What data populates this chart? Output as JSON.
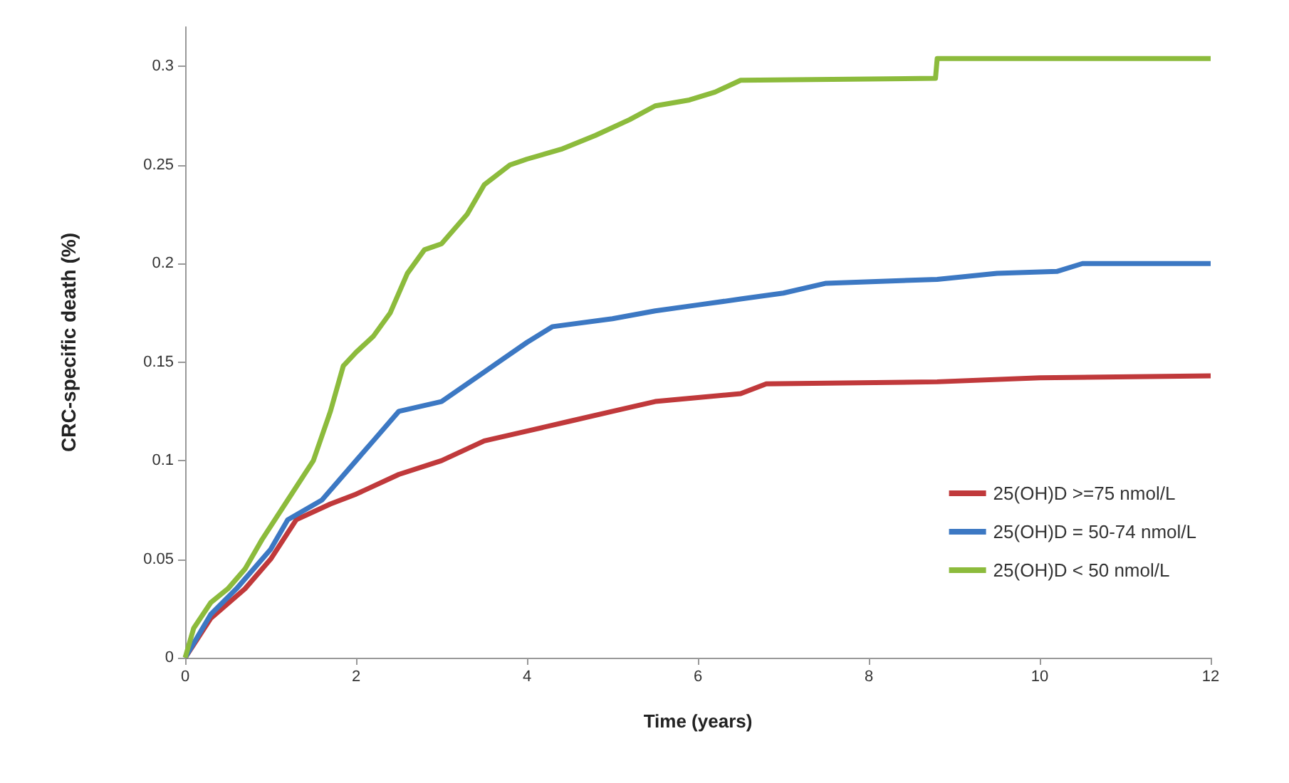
{
  "chart_data": {
    "type": "line",
    "xlabel": "Time (years)",
    "ylabel": "CRC-specific death (%)",
    "xlim": [
      0,
      12
    ],
    "xticks": [
      0,
      2,
      4,
      6,
      8,
      10,
      12
    ],
    "ylim": [
      0,
      0.32
    ],
    "yticks": [
      0,
      0.05,
      0.1,
      0.15,
      0.2,
      0.25,
      0.3
    ],
    "grid": false,
    "legend": "right",
    "marker": "none",
    "line_style": "solid",
    "series": [
      {
        "name": "25(OH)D >=75 nmol/L",
        "color": "#c0393b",
        "x": [
          0,
          0.3,
          0.7,
          1,
          1.3,
          1.7,
          2,
          2.5,
          3,
          3.5,
          4,
          4.5,
          5,
          5.5,
          6,
          6.5,
          6.8,
          8.8,
          10,
          12
        ],
        "values": [
          0,
          0.02,
          0.035,
          0.05,
          0.07,
          0.078,
          0.083,
          0.093,
          0.1,
          0.11,
          0.115,
          0.12,
          0.125,
          0.13,
          0.132,
          0.134,
          0.139,
          0.14,
          0.142,
          0.143
        ]
      },
      {
        "name": "25(OH)D = 50-74 nmol/L",
        "color": "#3c78c3",
        "x": [
          0,
          0.3,
          0.6,
          1,
          1.2,
          1.6,
          2,
          2.2,
          2.5,
          3,
          3.5,
          4,
          4.3,
          5,
          5.5,
          6,
          6.5,
          7,
          7.5,
          8.8,
          9.5,
          10.2,
          10.5,
          12
        ],
        "values": [
          0,
          0.022,
          0.035,
          0.055,
          0.07,
          0.08,
          0.1,
          0.11,
          0.125,
          0.13,
          0.145,
          0.16,
          0.168,
          0.172,
          0.176,
          0.179,
          0.182,
          0.185,
          0.19,
          0.192,
          0.195,
          0.196,
          0.2,
          0.2
        ]
      },
      {
        "name": "25(OH)D < 50 nmol/L",
        "color": "#8cbb3c",
        "x": [
          0,
          0.1,
          0.3,
          0.5,
          0.7,
          0.9,
          1.2,
          1.5,
          1.7,
          1.85,
          2,
          2.2,
          2.4,
          2.6,
          2.8,
          3,
          3.3,
          3.5,
          3.8,
          4,
          4.4,
          4.8,
          5.2,
          5.5,
          5.9,
          6.2,
          6.5,
          8.78,
          8.8,
          12
        ],
        "values": [
          0,
          0.015,
          0.028,
          0.035,
          0.045,
          0.06,
          0.08,
          0.1,
          0.125,
          0.148,
          0.155,
          0.163,
          0.175,
          0.195,
          0.207,
          0.21,
          0.225,
          0.24,
          0.25,
          0.253,
          0.258,
          0.265,
          0.273,
          0.28,
          0.283,
          0.287,
          0.293,
          0.294,
          0.304,
          0.304
        ]
      }
    ]
  }
}
